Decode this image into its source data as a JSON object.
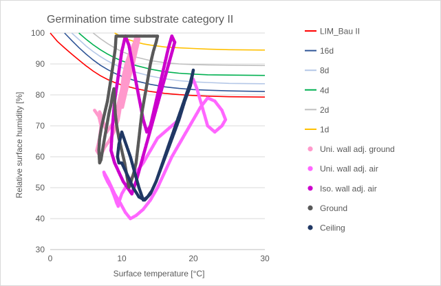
{
  "chart_data": {
    "type": "line",
    "title": "Germination time substrate category II",
    "xlabel": "Surface temperature [°C]",
    "ylabel": "Relative surface humidity [%]",
    "xlim": [
      0,
      30
    ],
    "ylim": [
      30,
      100
    ],
    "x_ticks": [
      "0",
      "10",
      "20",
      "30"
    ],
    "y_ticks": [
      "30",
      "40",
      "50",
      "60",
      "70",
      "80",
      "90",
      "100"
    ],
    "grid": "horizontal",
    "legend_position": "right",
    "isopleths": [
      {
        "name": "LIM_Bau II",
        "color": "#ff0000",
        "x": [
          0,
          1,
          2,
          3,
          4,
          5,
          6,
          7,
          8,
          9,
          10,
          12,
          14,
          16,
          18,
          20,
          22,
          25,
          30
        ],
        "y": [
          100,
          97.3,
          95.2,
          93.2,
          91.3,
          89.4,
          87.7,
          86.2,
          85,
          84,
          83.2,
          82,
          81.1,
          80.5,
          80.1,
          79.8,
          79.6,
          79.4,
          79.3
        ]
      },
      {
        "name": "16d",
        "color": "#2f5597",
        "x": [
          2,
          3,
          4,
          5,
          6,
          7,
          8,
          9,
          10,
          12,
          14,
          16,
          18,
          20,
          22,
          25,
          30
        ],
        "y": [
          100,
          97.6,
          95.3,
          93.2,
          91.3,
          89.6,
          88.2,
          87,
          86,
          84.5,
          83.4,
          82.6,
          82.1,
          81.7,
          81.5,
          81.3,
          81.1
        ]
      },
      {
        "name": "8d",
        "color": "#b4c7e7",
        "x": [
          3,
          4,
          5,
          6,
          7,
          8,
          9,
          10,
          12,
          14,
          16,
          18,
          20,
          22,
          25,
          30
        ],
        "y": [
          100,
          97.9,
          95.8,
          94,
          92.4,
          91,
          89.8,
          88.8,
          87.3,
          86.1,
          85.2,
          84.6,
          84.2,
          84,
          83.7,
          83.6
        ]
      },
      {
        "name": "4d",
        "color": "#00b050",
        "x": [
          4,
          5,
          6,
          7,
          8,
          9,
          10,
          12,
          14,
          16,
          18,
          20,
          22,
          25,
          30
        ],
        "y": [
          100,
          98,
          96.2,
          94.6,
          93.2,
          92,
          91,
          89.5,
          88.3,
          87.5,
          87,
          86.7,
          86.5,
          86.4,
          86.3
        ]
      },
      {
        "name": "2d",
        "color": "#bfbfbf",
        "x": [
          6,
          7,
          8,
          9,
          10,
          12,
          14,
          16,
          18,
          20,
          22,
          25,
          30
        ],
        "y": [
          100,
          98.2,
          96.6,
          95.2,
          94,
          92.2,
          91.1,
          90.4,
          90,
          89.8,
          89.7,
          89.6,
          89.5
        ]
      },
      {
        "name": "1d",
        "color": "#ffc000",
        "x": [
          9,
          10,
          11,
          12,
          13,
          14,
          16,
          18,
          20,
          22,
          25,
          30
        ],
        "y": [
          100,
          98.8,
          97.8,
          97.1,
          96.5,
          96.1,
          95.5,
          95.2,
          95,
          94.8,
          94.6,
          94.5
        ]
      }
    ],
    "measurements": [
      {
        "name": "Uni. wall adj. ground",
        "color": "#ff99cc",
        "style": "dots",
        "x": [
          6.2,
          6.8,
          7.1,
          6.9,
          6.5,
          7,
          7.6,
          8.2,
          8.9,
          9.5,
          9.8,
          10.2,
          10.6,
          11,
          11.4,
          11.7,
          11.9,
          12,
          11.8,
          11.2,
          10.6,
          10.2,
          10,
          9.8,
          10.1,
          10.5,
          11,
          11.6,
          12.1,
          12.4,
          12.2,
          11.6,
          11.1,
          10.6,
          10.2,
          9.9,
          9.7,
          9.5,
          9.3,
          9.1,
          8.8,
          8.5,
          8.2,
          7.9,
          7.6,
          7.3,
          7,
          6.8
        ],
        "y": [
          75,
          73,
          70,
          66,
          62,
          60,
          63,
          65,
          68,
          72,
          76,
          80,
          84,
          88,
          91,
          95,
          98,
          99,
          97,
          94,
          90,
          86,
          82,
          78,
          76,
          80,
          85,
          90,
          95,
          98,
          99,
          96,
          92,
          88,
          84,
          81,
          79,
          77,
          75,
          73,
          71,
          70,
          69,
          68,
          70,
          72,
          74,
          75
        ]
      },
      {
        "name": "Uni. wall adj. air",
        "color": "#ff66ff",
        "style": "dots",
        "x": [
          7.5,
          8.2,
          9,
          9.8,
          10.5,
          11.2,
          12,
          13,
          14,
          15,
          16,
          17,
          18,
          19,
          20,
          21,
          22,
          23,
          24,
          24.5,
          24,
          23,
          22,
          21.5,
          21,
          20.5,
          20,
          19.5,
          19,
          18.5,
          18,
          17,
          16,
          15,
          14,
          13,
          12,
          11,
          10.5,
          10,
          9.7,
          9.5,
          9.3,
          9,
          8.5,
          8,
          7.6,
          7.5
        ],
        "y": [
          55,
          52,
          48,
          45,
          42,
          40,
          41,
          43,
          46,
          50,
          55,
          60,
          64,
          68,
          72,
          76,
          79,
          78,
          75,
          72,
          70,
          68,
          70,
          74,
          78,
          82,
          85,
          83,
          80,
          76,
          72,
          70,
          68,
          66,
          62,
          58,
          55,
          52,
          50,
          48,
          46,
          44,
          45,
          47,
          50,
          52,
          54,
          55
        ]
      },
      {
        "name": "Iso. wall adj. air",
        "color": "#cc00cc",
        "style": "dots",
        "x": [
          8.5,
          9,
          9.6,
          10.2,
          10.8,
          11.4,
          12,
          12.6,
          13.2,
          13.8,
          14.4,
          15,
          15.6,
          16.2,
          16.8,
          17.4,
          17,
          16.5,
          16,
          15.5,
          15,
          14.5,
          14,
          13.5,
          13,
          12.5,
          12,
          11.5,
          11,
          10.5,
          10,
          9.5,
          9,
          8.7,
          8.5
        ],
        "y": [
          62,
          58,
          55,
          52,
          50,
          48,
          52,
          57,
          62,
          67,
          72,
          77,
          82,
          87,
          92,
          97,
          99,
          95,
          90,
          85,
          80,
          75,
          70,
          68,
          72,
          78,
          84,
          90,
          96,
          99,
          94,
          86,
          78,
          70,
          62
        ]
      },
      {
        "name": "Ground",
        "color": "#595959",
        "style": "line",
        "x": [
          9.2,
          9.8,
          10.5,
          11,
          11.5,
          12,
          12.5,
          13,
          13.5,
          14,
          14.5,
          15,
          14.8,
          14.4,
          14,
          13.7,
          13.4,
          13.1,
          12.8,
          12.6,
          12.4,
          12.2,
          12,
          11.7,
          11.3,
          11,
          10.7,
          10.4,
          10,
          9.6,
          9.3,
          9.1,
          9,
          8.9,
          8.7,
          8.5,
          8.2,
          7.9,
          7.6,
          7.3,
          7.1,
          6.9,
          6.8,
          6.9,
          7.2,
          7.6,
          8,
          8.4,
          8.8,
          9.1,
          9.2
        ],
        "y": [
          99,
          99,
          99,
          99,
          99,
          99,
          99,
          99,
          99,
          99,
          99,
          99,
          97,
          94,
          90,
          86,
          82,
          78,
          74,
          70,
          66,
          62,
          58,
          55,
          52,
          50,
          54,
          58,
          62,
          66,
          70,
          74,
          78,
          82,
          80,
          77,
          74,
          70,
          66,
          62,
          59,
          58,
          62,
          66,
          70,
          74,
          78,
          84,
          90,
          95,
          99
        ]
      },
      {
        "name": "Ceiling",
        "color": "#203864",
        "style": "line",
        "x": [
          10,
          10.8,
          11.6,
          12.4,
          13.2,
          14,
          14.8,
          15.6,
          16.4,
          17.2,
          18,
          18.8,
          19.6,
          20,
          19.6,
          19,
          18.4,
          17.8,
          17.2,
          16.6,
          16,
          15.4,
          14.8,
          14.2,
          13.6,
          13,
          12.4,
          11.8,
          11.2,
          10.6,
          10,
          9.6,
          9.4,
          9.6,
          10
        ],
        "y": [
          58,
          54,
          50,
          47,
          46,
          48,
          52,
          57,
          62,
          67,
          72,
          78,
          83,
          88,
          84,
          80,
          76,
          72,
          68,
          64,
          60,
          56,
          52,
          49,
          47,
          46,
          50,
          55,
          60,
          64,
          68,
          64,
          60,
          58,
          58
        ]
      }
    ]
  }
}
